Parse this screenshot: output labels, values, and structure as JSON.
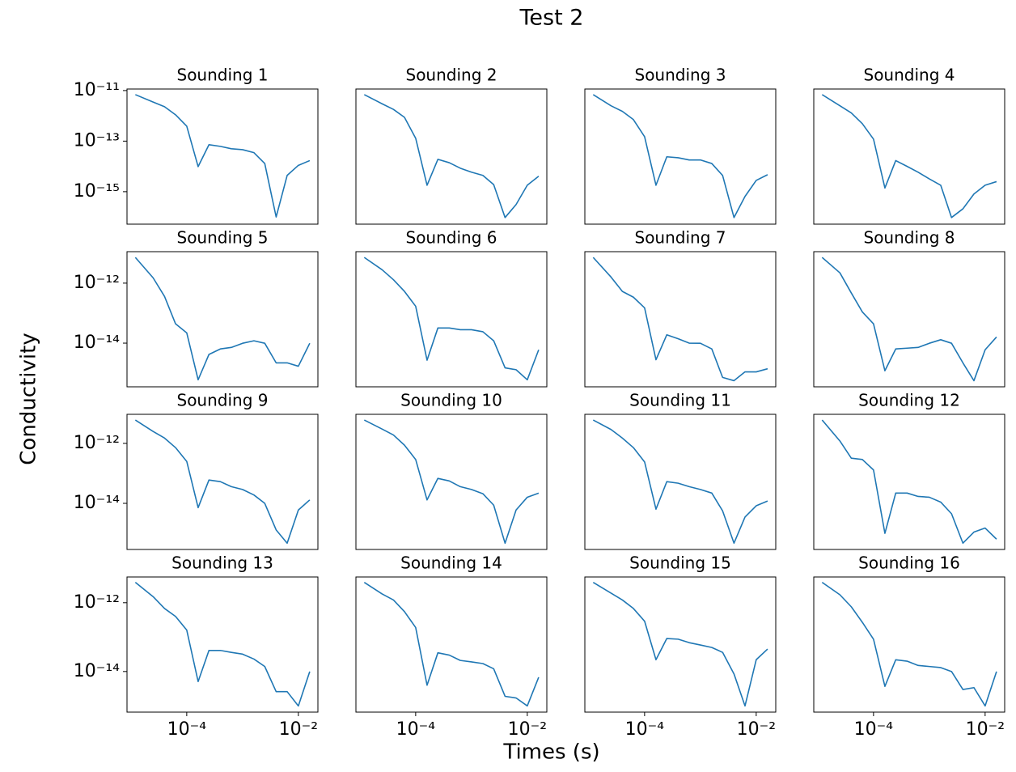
{
  "title": "Test 2",
  "x_label": "Times (s)",
  "y_label": "Conductivity",
  "chart_data": [
    {
      "type": "line",
      "title": "Sounding 1",
      "log_x": true,
      "log_y": true,
      "color": "#1f77b4",
      "xlim": [
        8.5e-06,
        0.0224
      ],
      "ylim": [
        5.2e-17,
        1.15e-11
      ],
      "yticks": [
        {
          "value": 1e-11,
          "label": "10⁻¹¹"
        },
        {
          "value": 1e-13,
          "label": "10⁻¹³"
        },
        {
          "value": 1e-15,
          "label": "10⁻¹⁵"
        }
      ],
      "x": [
        1.2e-05,
        2.5e-05,
        4e-05,
        6.3e-05,
        0.0001,
        0.00016,
        0.00025,
        0.0004,
        0.00063,
        0.001,
        0.0016,
        0.0025,
        0.004,
        0.0063,
        0.01,
        0.016
      ],
      "values": [
        6.9e-12,
        3.5e-12,
        2.3e-12,
        1.1e-12,
        3.9e-13,
        9.8e-15,
        7.2e-14,
        6.2e-14,
        5e-14,
        4.6e-14,
        3.5e-14,
        1.3e-14,
        1e-16,
        4.4e-15,
        1.1e-14,
        1.7e-14
      ]
    },
    {
      "type": "line",
      "title": "Sounding 2",
      "log_x": true,
      "log_y": true,
      "color": "#1f77b4",
      "xlim": [
        8.5e-06,
        0.0224
      ],
      "ylim": [
        5.2e-17,
        1.15e-11
      ],
      "x": [
        1.2e-05,
        2.5e-05,
        4e-05,
        6.3e-05,
        0.0001,
        0.00016,
        0.00025,
        0.0004,
        0.00063,
        0.001,
        0.0016,
        0.0025,
        0.004,
        0.0063,
        0.01,
        0.016
      ],
      "values": [
        6.9e-12,
        3e-12,
        1.8e-12,
        8.7e-13,
        1.3e-13,
        1.8e-15,
        1.9e-14,
        1.4e-14,
        8.5e-15,
        5.9e-15,
        4.4e-15,
        1.9e-15,
        9.5e-17,
        3.1e-16,
        1.8e-15,
        4.1e-15
      ]
    },
    {
      "type": "line",
      "title": "Sounding 3",
      "log_x": true,
      "log_y": true,
      "color": "#1f77b4",
      "xlim": [
        8.5e-06,
        0.0224
      ],
      "ylim": [
        5.2e-17,
        1.15e-11
      ],
      "x": [
        1.2e-05,
        2.5e-05,
        4e-05,
        6.3e-05,
        0.0001,
        0.00016,
        0.00025,
        0.0004,
        0.00063,
        0.001,
        0.0016,
        0.0025,
        0.004,
        0.0063,
        0.01,
        0.016
      ],
      "values": [
        6.9e-12,
        2.5e-12,
        1.5e-12,
        7.1e-13,
        1.5e-13,
        1.8e-15,
        2.4e-14,
        2.2e-14,
        1.8e-14,
        1.8e-14,
        1.3e-14,
        4.4e-15,
        9.5e-17,
        6.5e-16,
        2.8e-15,
        4.7e-15
      ]
    },
    {
      "type": "line",
      "title": "Sounding 4",
      "log_x": true,
      "log_y": true,
      "color": "#1f77b4",
      "xlim": [
        8.5e-06,
        0.0224
      ],
      "ylim": [
        5.2e-17,
        1.15e-11
      ],
      "x": [
        1.2e-05,
        2.5e-05,
        4e-05,
        6.3e-05,
        0.0001,
        0.00016,
        0.00025,
        0.0004,
        0.00063,
        0.001,
        0.0016,
        0.0025,
        0.004,
        0.0063,
        0.01,
        0.016
      ],
      "values": [
        6.9e-12,
        2.5e-12,
        1.3e-12,
        4.9e-13,
        1.2e-13,
        1.4e-15,
        1.7e-14,
        1e-14,
        5.9e-15,
        3.2e-15,
        1.8e-15,
        9.5e-17,
        2.1e-16,
        8.1e-16,
        1.8e-15,
        2.5e-15
      ]
    },
    {
      "type": "line",
      "title": "Sounding 5",
      "log_x": true,
      "log_y": true,
      "color": "#1f77b4",
      "xlim": [
        8.5e-06,
        0.0224
      ],
      "ylim": [
        3.5e-16,
        1.12e-11
      ],
      "yticks": [
        {
          "value": 1e-12,
          "label": "10⁻¹²"
        },
        {
          "value": 1e-14,
          "label": "10⁻¹⁴"
        }
      ],
      "x": [
        1.2e-05,
        2.5e-05,
        4e-05,
        6.3e-05,
        0.0001,
        0.00016,
        0.00025,
        0.0004,
        0.00063,
        0.001,
        0.0016,
        0.0025,
        0.004,
        0.0063,
        0.01,
        0.016
      ],
      "values": [
        7.2e-12,
        1.5e-12,
        3.6e-13,
        4.4e-14,
        2.2e-14,
        6e-16,
        4.2e-15,
        6.4e-15,
        7.2e-15,
        9.9e-15,
        1.2e-14,
        9.9e-15,
        2.2e-15,
        2.2e-15,
        1.7e-15,
        9.9e-15
      ]
    },
    {
      "type": "line",
      "title": "Sounding 6",
      "log_x": true,
      "log_y": true,
      "color": "#1f77b4",
      "xlim": [
        8.5e-06,
        0.0224
      ],
      "ylim": [
        3.5e-16,
        1.12e-11
      ],
      "x": [
        1.2e-05,
        2.5e-05,
        4e-05,
        6.3e-05,
        0.0001,
        0.00016,
        0.00025,
        0.0004,
        0.00063,
        0.001,
        0.0016,
        0.0025,
        0.004,
        0.0063,
        0.01,
        0.016
      ],
      "values": [
        7.2e-12,
        2.8e-12,
        1.3e-12,
        5.3e-13,
        1.7e-13,
        2.7e-15,
        3.2e-14,
        3.2e-14,
        2.8e-14,
        2.8e-14,
        2.4e-14,
        1.2e-14,
        1.5e-15,
        1.3e-15,
        6e-16,
        6e-15
      ]
    },
    {
      "type": "line",
      "title": "Sounding 7",
      "log_x": true,
      "log_y": true,
      "color": "#1f77b4",
      "xlim": [
        8.5e-06,
        0.0224
      ],
      "ylim": [
        3.5e-16,
        1.12e-11
      ],
      "x": [
        1.2e-05,
        2.5e-05,
        4e-05,
        6.3e-05,
        0.0001,
        0.00016,
        0.00025,
        0.0004,
        0.00063,
        0.001,
        0.0016,
        0.0025,
        0.004,
        0.0063,
        0.01,
        0.016
      ],
      "values": [
        7.2e-12,
        1.6e-12,
        5.3e-13,
        3.4e-13,
        1.5e-13,
        2.8e-15,
        1.9e-14,
        1.4e-14,
        1e-14,
        9.9e-15,
        6.4e-15,
        7.2e-16,
        5.6e-16,
        1.1e-15,
        1.1e-15,
        1.4e-15
      ]
    },
    {
      "type": "line",
      "title": "Sounding 8",
      "log_x": true,
      "log_y": true,
      "color": "#1f77b4",
      "xlim": [
        8.5e-06,
        0.0224
      ],
      "ylim": [
        3.5e-16,
        1.12e-11
      ],
      "x": [
        1.2e-05,
        2.5e-05,
        4e-05,
        6.3e-05,
        0.0001,
        0.00016,
        0.00025,
        0.0004,
        0.00063,
        0.001,
        0.0016,
        0.0025,
        0.004,
        0.0063,
        0.01,
        0.016
      ],
      "values": [
        7.2e-12,
        2.2e-12,
        4.7e-13,
        1.1e-13,
        4.4e-14,
        1.2e-15,
        6.4e-15,
        6.8e-15,
        7.2e-15,
        9.9e-15,
        1.3e-14,
        9.9e-15,
        2.2e-15,
        5.6e-16,
        6e-15,
        1.6e-14
      ]
    },
    {
      "type": "line",
      "title": "Sounding 9",
      "log_x": true,
      "log_y": true,
      "color": "#1f77b4",
      "xlim": [
        8.5e-06,
        0.0224
      ],
      "ylim": [
        2.9e-16,
        9.3e-12
      ],
      "yticks": [
        {
          "value": 1e-12,
          "label": "10⁻¹²"
        },
        {
          "value": 1e-14,
          "label": "10⁻¹⁴"
        }
      ],
      "x": [
        1.2e-05,
        2.5e-05,
        4e-05,
        6.3e-05,
        0.0001,
        0.00016,
        0.00025,
        0.0004,
        0.00063,
        0.001,
        0.0016,
        0.0025,
        0.004,
        0.0063,
        0.01,
        0.016
      ],
      "values": [
        6e-12,
        2.5e-12,
        1.5e-12,
        7.2e-13,
        2.5e-13,
        7.2e-15,
        6e-14,
        5.3e-14,
        3.6e-14,
        2.9e-14,
        1.9e-14,
        1e-14,
        1.3e-15,
        4.7e-16,
        6e-15,
        1.3e-14
      ]
    },
    {
      "type": "line",
      "title": "Sounding 10",
      "log_x": true,
      "log_y": true,
      "color": "#1f77b4",
      "xlim": [
        8.5e-06,
        0.0224
      ],
      "ylim": [
        2.9e-16,
        9.3e-12
      ],
      "x": [
        1.2e-05,
        2.5e-05,
        4e-05,
        6.3e-05,
        0.0001,
        0.00016,
        0.00025,
        0.0004,
        0.00063,
        0.001,
        0.0016,
        0.0025,
        0.004,
        0.0063,
        0.01,
        0.016
      ],
      "values": [
        6e-12,
        3e-12,
        1.9e-12,
        8.7e-13,
        2.9e-13,
        1.3e-14,
        6.8e-14,
        5.6e-14,
        3.6e-14,
        2.9e-14,
        2.1e-14,
        8.7e-15,
        4.7e-16,
        6e-15,
        1.6e-14,
        2.2e-14
      ]
    },
    {
      "type": "line",
      "title": "Sounding 11",
      "log_x": true,
      "log_y": true,
      "color": "#1f77b4",
      "xlim": [
        8.5e-06,
        0.0224
      ],
      "ylim": [
        2.9e-16,
        9.3e-12
      ],
      "x": [
        1.2e-05,
        2.5e-05,
        4e-05,
        6.3e-05,
        0.0001,
        0.00016,
        0.00025,
        0.0004,
        0.00063,
        0.001,
        0.0016,
        0.0025,
        0.004,
        0.0063,
        0.01,
        0.016
      ],
      "values": [
        6e-12,
        2.9e-12,
        1.5e-12,
        7.2e-13,
        2.4e-13,
        6.4e-15,
        5.3e-14,
        4.7e-14,
        3.6e-14,
        2.9e-14,
        2.2e-14,
        5.6e-15,
        4.7e-16,
        3.5e-15,
        8.3e-15,
        1.2e-14
      ]
    },
    {
      "type": "line",
      "title": "Sounding 12",
      "log_x": true,
      "log_y": true,
      "color": "#1f77b4",
      "xlim": [
        8.5e-06,
        0.0224
      ],
      "ylim": [
        2.9e-16,
        9.3e-12
      ],
      "x": [
        1.2e-05,
        2.5e-05,
        4e-05,
        6.3e-05,
        0.0001,
        0.00016,
        0.00025,
        0.0004,
        0.00063,
        0.001,
        0.0016,
        0.0025,
        0.004,
        0.0063,
        0.01,
        0.016
      ],
      "values": [
        6e-12,
        1.2e-12,
        3.2e-13,
        2.9e-13,
        1.3e-13,
        1e-15,
        2.2e-14,
        2.2e-14,
        1.7e-14,
        1.6e-14,
        1.1e-14,
        4.5e-15,
        4.7e-16,
        1.1e-15,
        1.5e-15,
        6.4e-16
      ]
    },
    {
      "type": "line",
      "title": "Sounding 13",
      "log_x": true,
      "log_y": true,
      "color": "#1f77b4",
      "xlim": [
        8.5e-06,
        0.0224
      ],
      "ylim": [
        6.6e-16,
        5.6e-12
      ],
      "yticks": [
        {
          "value": 1e-12,
          "label": "10⁻¹²"
        },
        {
          "value": 1e-14,
          "label": "10⁻¹⁴"
        }
      ],
      "xticks": [
        {
          "value": 0.0001,
          "label": "10⁻⁴"
        },
        {
          "value": 0.01,
          "label": "10⁻²"
        }
      ],
      "x": [
        1.2e-05,
        2.5e-05,
        4e-05,
        6.3e-05,
        0.0001,
        0.00016,
        0.00025,
        0.0004,
        0.00063,
        0.001,
        0.0016,
        0.0025,
        0.004,
        0.0063,
        0.01,
        0.016
      ],
      "values": [
        3.9e-12,
        1.5e-12,
        6.8e-13,
        4e-13,
        1.6e-13,
        5.1e-15,
        4.1e-14,
        4.1e-14,
        3.6e-14,
        3.2e-14,
        2.3e-14,
        1.4e-14,
        2.6e-15,
        2.6e-15,
        1e-15,
        1e-14
      ]
    },
    {
      "type": "line",
      "title": "Sounding 14",
      "log_x": true,
      "log_y": true,
      "color": "#1f77b4",
      "xlim": [
        8.5e-06,
        0.0224
      ],
      "ylim": [
        6.6e-16,
        5.6e-12
      ],
      "xticks": [
        {
          "value": 0.0001,
          "label": "10⁻⁴"
        },
        {
          "value": 0.01,
          "label": "10⁻²"
        }
      ],
      "x": [
        1.2e-05,
        2.5e-05,
        4e-05,
        6.3e-05,
        0.0001,
        0.00016,
        0.00025,
        0.0004,
        0.00063,
        0.001,
        0.0016,
        0.0025,
        0.004,
        0.0063,
        0.01,
        0.016
      ],
      "values": [
        3.9e-12,
        1.8e-12,
        1.2e-12,
        5.5e-13,
        1.9e-13,
        4e-15,
        3.5e-14,
        3e-14,
        2.1e-14,
        1.9e-14,
        1.7e-14,
        1.2e-14,
        1.9e-15,
        1.7e-15,
        1e-15,
        6.8e-15
      ]
    },
    {
      "type": "line",
      "title": "Sounding 15",
      "log_x": true,
      "log_y": true,
      "color": "#1f77b4",
      "xlim": [
        8.5e-06,
        0.0224
      ],
      "ylim": [
        6.6e-16,
        5.6e-12
      ],
      "xticks": [
        {
          "value": 0.0001,
          "label": "10⁻⁴"
        },
        {
          "value": 0.01,
          "label": "10⁻²"
        }
      ],
      "x": [
        1.2e-05,
        2.5e-05,
        4e-05,
        6.3e-05,
        0.0001,
        0.00016,
        0.00025,
        0.0004,
        0.00063,
        0.001,
        0.0016,
        0.0025,
        0.004,
        0.0063,
        0.01,
        0.016
      ],
      "values": [
        3.9e-12,
        1.9e-12,
        1.2e-12,
        6.8e-13,
        2.9e-13,
        2.2e-14,
        9.1e-14,
        8.7e-14,
        6.9e-14,
        5.9e-14,
        5e-14,
        3.6e-14,
        8.5e-15,
        1e-15,
        2.2e-14,
        4.5e-14
      ]
    },
    {
      "type": "line",
      "title": "Sounding 16",
      "log_x": true,
      "log_y": true,
      "color": "#1f77b4",
      "xlim": [
        8.5e-06,
        0.0224
      ],
      "ylim": [
        6.6e-16,
        5.6e-12
      ],
      "xticks": [
        {
          "value": 0.0001,
          "label": "10⁻⁴"
        },
        {
          "value": 0.01,
          "label": "10⁻²"
        }
      ],
      "x": [
        1.2e-05,
        2.5e-05,
        4e-05,
        6.3e-05,
        0.0001,
        0.00016,
        0.00025,
        0.0004,
        0.00063,
        0.001,
        0.0016,
        0.0025,
        0.004,
        0.0063,
        0.01,
        0.016
      ],
      "values": [
        3.9e-12,
        1.7e-12,
        7.6e-13,
        2.7e-13,
        8.7e-14,
        3.7e-15,
        2.2e-14,
        2e-14,
        1.5e-14,
        1.4e-14,
        1.3e-14,
        1e-14,
        3e-15,
        3.4e-15,
        1e-15,
        1e-14
      ]
    }
  ]
}
